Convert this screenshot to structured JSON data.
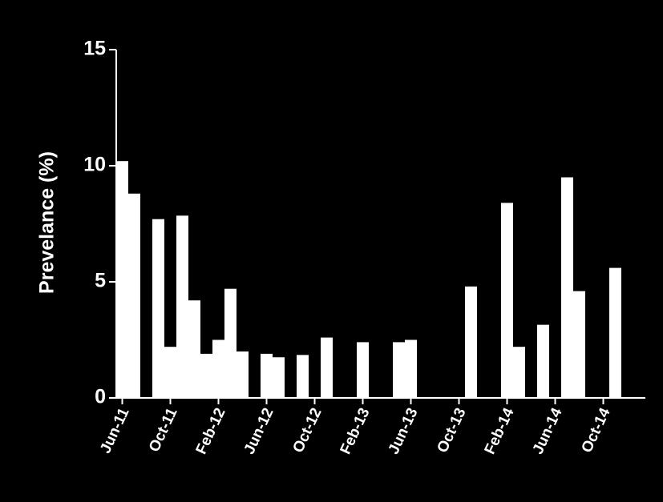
{
  "chart_data": {
    "type": "bar",
    "y_label": "Prevelance (%)",
    "categories": [
      "Jun-11",
      null,
      null,
      null,
      "Oct-11",
      null,
      null,
      null,
      "Feb-12",
      null,
      null,
      null,
      "Jun-12",
      null,
      null,
      null,
      "Oct-12",
      null,
      null,
      null,
      "Feb-13",
      null,
      null,
      null,
      "Jun-13",
      null,
      null,
      null,
      "Oct-13",
      null,
      null,
      null,
      "Feb-14",
      null,
      null,
      null,
      "Jun-14",
      null,
      null,
      null,
      "Oct-14",
      null,
      null,
      null
    ],
    "values": [
      10.2,
      8.8,
      null,
      7.7,
      2.2,
      7.85,
      4.2,
      1.9,
      2.5,
      4.7,
      2.0,
      null,
      1.9,
      1.75,
      null,
      1.85,
      null,
      2.6,
      null,
      null,
      2.4,
      null,
      null,
      2.4,
      2.5,
      null,
      null,
      null,
      null,
      4.8,
      null,
      null,
      8.4,
      2.2,
      null,
      3.15,
      null,
      9.5,
      4.6,
      null,
      null,
      5.6,
      null,
      null
    ],
    "color": "#ffffff",
    "ylim": [
      0,
      15
    ],
    "yticks": [
      0,
      5,
      10,
      15
    ]
  }
}
